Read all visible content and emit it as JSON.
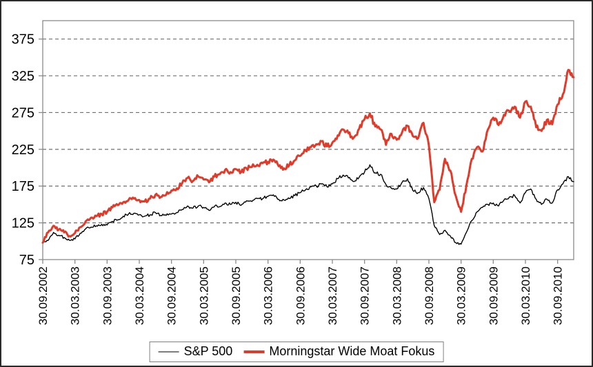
{
  "chart_data": {
    "type": "line",
    "title": "",
    "xlabel": "",
    "ylabel": "",
    "grid": "horizontal-dashed",
    "legend_position": "bottom-center",
    "ylim": [
      75,
      400
    ],
    "y_ticks": [
      75,
      125,
      175,
      225,
      275,
      325,
      375
    ],
    "x_tick_labels": [
      "30.09.2002",
      "30.03.2003",
      "30.09.2003",
      "30.03.2004",
      "30.09.2004",
      "30.03.2005",
      "30.09.2005",
      "30.03.2006",
      "30.09.2006",
      "30.03.2007",
      "30.09.2007",
      "30.03.2008",
      "30.09.2008",
      "30.03.2009",
      "30.09.2009",
      "30.03.2010",
      "30.09.2010"
    ],
    "x_months_per_tick": 6,
    "series": [
      {
        "name": "S&P 500",
        "color": "#000000",
        "line_width": 1.4,
        "legend_color": "#7d7d7d",
        "legend_thickness": 2,
        "values": [
          98,
          101,
          112,
          108,
          105,
          101,
          103,
          111,
          117,
          119,
          121,
          123,
          122,
          127,
          129,
          134,
          137,
          138,
          136,
          134,
          136,
          139,
          135,
          135,
          137,
          139,
          143,
          148,
          145,
          148,
          146,
          142,
          147,
          147,
          152,
          150,
          153,
          149,
          155,
          154,
          158,
          158,
          161,
          163,
          157,
          156,
          158,
          162,
          166,
          170,
          174,
          175,
          178,
          174,
          178,
          185,
          190,
          186,
          181,
          187,
          194,
          204,
          193,
          191,
          177,
          172,
          171,
          180,
          185,
          169,
          166,
          173,
          158,
          121,
          109,
          115,
          107,
          98,
          96,
          112,
          128,
          140,
          146,
          150,
          152,
          148,
          156,
          160,
          162,
          152,
          166,
          171,
          157,
          150,
          157,
          152,
          170,
          178,
          188,
          181
        ]
      },
      {
        "name": "Morningstar Wide Moat Fokus",
        "color": "#e23a29",
        "line_width": 3,
        "legend_color": "#e23a29",
        "legend_thickness": 4,
        "values": [
          98,
          112,
          121,
          116,
          112,
          107,
          111,
          119,
          127,
          132,
          134,
          137,
          140,
          146,
          149,
          153,
          156,
          158,
          156,
          154,
          158,
          163,
          160,
          163,
          169,
          172,
          179,
          186,
          182,
          188,
          184,
          180,
          188,
          191,
          197,
          194,
          198,
          194,
          199,
          201,
          204,
          206,
          208,
          211,
          202,
          199,
          204,
          210,
          216,
          223,
          228,
          232,
          236,
          229,
          234,
          244,
          252,
          247,
          241,
          253,
          266,
          274,
          256,
          252,
          231,
          246,
          238,
          248,
          257,
          243,
          240,
          261,
          230,
          153,
          170,
          212,
          196,
          162,
          140,
          176,
          212,
          228,
          222,
          252,
          268,
          258,
          272,
          277,
          283,
          268,
          290,
          283,
          255,
          250,
          265,
          259,
          286,
          300,
          333,
          323
        ]
      }
    ]
  }
}
